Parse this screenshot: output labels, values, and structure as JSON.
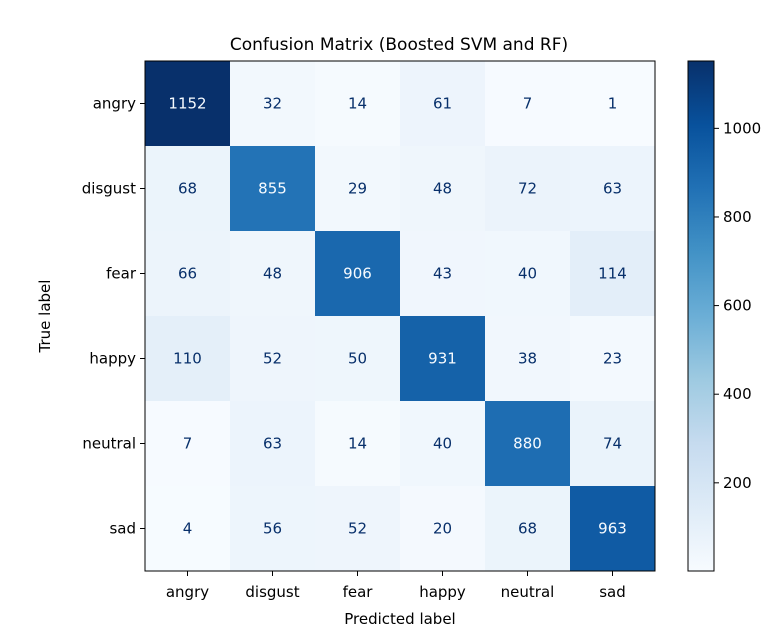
{
  "chart_data": {
    "type": "heatmap",
    "title": "Confusion Matrix (Boosted SVM and RF)",
    "xlabel": "Predicted label",
    "ylabel": "True label",
    "x_categories": [
      "angry",
      "disgust",
      "fear",
      "happy",
      "neutral",
      "sad"
    ],
    "y_categories": [
      "angry",
      "disgust",
      "fear",
      "happy",
      "neutral",
      "sad"
    ],
    "values": [
      [
        1152,
        32,
        14,
        61,
        7,
        1
      ],
      [
        68,
        855,
        29,
        48,
        72,
        63
      ],
      [
        66,
        48,
        906,
        43,
        40,
        114
      ],
      [
        110,
        52,
        50,
        931,
        38,
        23
      ],
      [
        7,
        63,
        14,
        40,
        880,
        74
      ],
      [
        4,
        56,
        52,
        20,
        68,
        963
      ]
    ],
    "colormap": "Blues",
    "color_range": [
      1,
      1152
    ],
    "colorbar_ticks": [
      "200",
      "400",
      "600",
      "800",
      "1000"
    ],
    "colorbar_tick_values": [
      200,
      400,
      600,
      800,
      1000
    ]
  }
}
